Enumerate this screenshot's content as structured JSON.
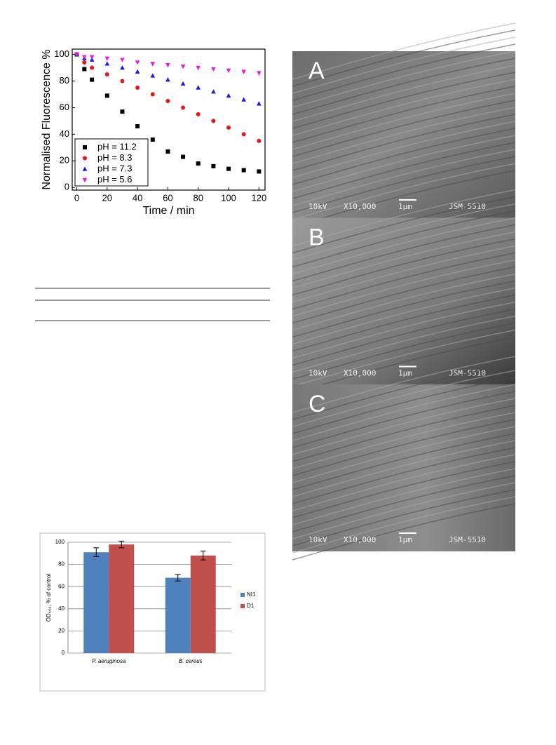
{
  "chart_data": [
    {
      "type": "scatter",
      "ylabel": "Normalised Fluorescence %",
      "xlabel": "Time / min",
      "xlim": [
        -3,
        124
      ],
      "xticks": [
        0,
        20,
        40,
        60,
        80,
        100,
        120
      ],
      "ylim": [
        -2,
        104
      ],
      "yticks": [
        0,
        20,
        40,
        60,
        80,
        100
      ],
      "legend": "lower left",
      "series": [
        {
          "name": "pH = 11.2",
          "color": "#000000",
          "marker": "square",
          "x": [
            0,
            5,
            10,
            20,
            30,
            40,
            50,
            60,
            70,
            80,
            90,
            100,
            110,
            120
          ],
          "values": [
            100,
            89,
            81,
            69,
            57,
            46,
            36,
            27,
            23,
            18,
            16,
            14,
            13,
            12
          ]
        },
        {
          "name": "pH = 8.3",
          "color": "#e8141b",
          "marker": "circle",
          "x": [
            0,
            5,
            10,
            20,
            30,
            40,
            50,
            60,
            70,
            80,
            90,
            100,
            110,
            120
          ],
          "values": [
            100,
            94,
            90,
            85,
            80,
            75,
            70,
            65,
            60,
            55,
            50,
            45,
            40,
            35
          ]
        },
        {
          "name": "pH = 7.3",
          "color": "#1a1ae6",
          "marker": "triangle",
          "x": [
            0,
            5,
            10,
            20,
            30,
            40,
            50,
            60,
            70,
            80,
            90,
            100,
            110,
            120
          ],
          "values": [
            100,
            97,
            96,
            93,
            90,
            87,
            84,
            81,
            78,
            75,
            72,
            69,
            66,
            63
          ]
        },
        {
          "name": "pH = 5.6",
          "color": "#e61ae6",
          "marker": "triangle-down",
          "x": [
            0,
            5,
            10,
            20,
            30,
            40,
            50,
            60,
            70,
            80,
            90,
            100,
            110,
            120
          ],
          "values": [
            100,
            98,
            98,
            97,
            96,
            94,
            93,
            92,
            91,
            90,
            89,
            88,
            87,
            86
          ]
        }
      ]
    },
    {
      "type": "bar",
      "ylabel": "OD₆₀₀, % of control",
      "categories": [
        "P. aeruginosa",
        "B. cereus"
      ],
      "ylim": [
        0,
        100
      ],
      "yticks": [
        0,
        20,
        40,
        60,
        80,
        100
      ],
      "grid": true,
      "legend": "right",
      "series": [
        {
          "name": "NI1",
          "color": "#4f81bd",
          "values": [
            91,
            68
          ],
          "errors": [
            4,
            3
          ]
        },
        {
          "name": "D1",
          "color": "#c0504d",
          "values": [
            98,
            88
          ],
          "errors": [
            3,
            4
          ]
        }
      ]
    }
  ],
  "images": [
    {
      "label": "A",
      "info": [
        "10kV",
        "X10,000",
        "1μm",
        "JSM-5510"
      ]
    },
    {
      "label": "B",
      "info": [
        "10kV",
        "X10,000",
        "1μm",
        "JSM-5510"
      ]
    },
    {
      "label": "C",
      "info": [
        "10kV",
        "X10,000",
        "1μm",
        "JSM-5510"
      ]
    }
  ]
}
